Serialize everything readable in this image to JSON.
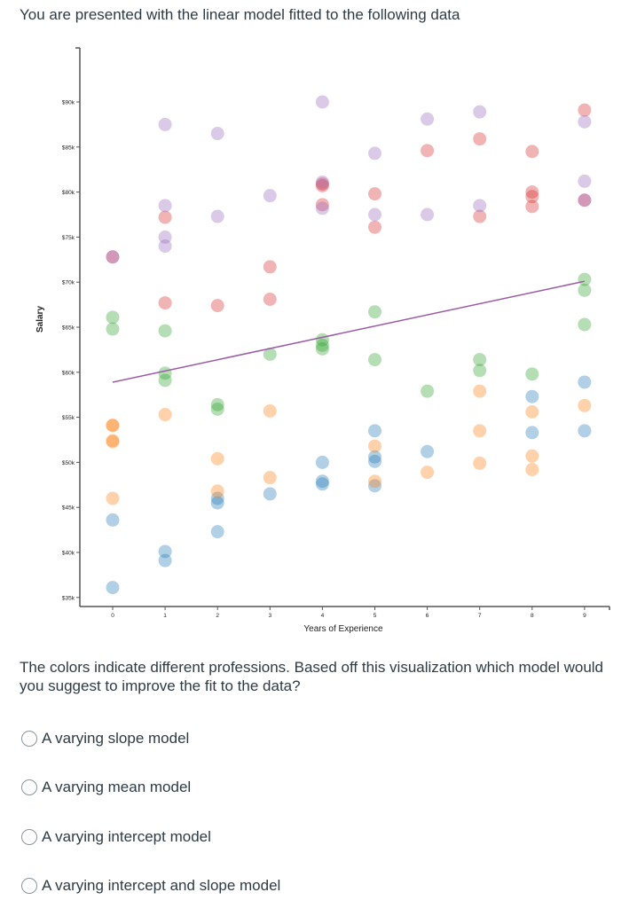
{
  "title": "You are presented with the linear model fitted to the following data",
  "question": "The colors indicate different professions. Based off this visualization which model would you suggest to improve the fit to the data?",
  "options": [
    {
      "label": "A varying slope model",
      "selected": false
    },
    {
      "label": "A varying mean model",
      "selected": false
    },
    {
      "label": "A varying intercept model",
      "selected": false
    },
    {
      "label": "A varying intercept and slope model",
      "selected": false
    }
  ],
  "chart_data": {
    "type": "scatter",
    "xlabel": "Years of Experience",
    "ylabel": "Salary",
    "xlim": [
      -0.6,
      9.5
    ],
    "ylim": [
      34,
      96
    ],
    "x_ticks": [
      "0",
      "1",
      "2",
      "3",
      "4",
      "5",
      "6",
      "7",
      "8",
      "9"
    ],
    "y_ticks": [
      "$35k",
      "$40k",
      "$45k",
      "$50k",
      "$55k",
      "$60k",
      "$65k",
      "$70k",
      "$75k",
      "$80k",
      "$85k",
      "$90k"
    ],
    "y_tick_values": [
      35,
      40,
      45,
      50,
      55,
      60,
      65,
      70,
      75,
      80,
      85,
      90
    ],
    "grid": false,
    "point_opacity": 0.35,
    "fit_line": {
      "x": [
        0,
        9
      ],
      "y": [
        58.9,
        70.1
      ],
      "color": "#9b59a6"
    },
    "series": [
      {
        "color": "#1f77b4",
        "points": [
          [
            0,
            43.6
          ],
          [
            0,
            36.1
          ],
          [
            1,
            40.1
          ],
          [
            1,
            39.1
          ],
          [
            2,
            46.0
          ],
          [
            2,
            45.5
          ],
          [
            2,
            42.3
          ],
          [
            3,
            46.5
          ],
          [
            4,
            50.0
          ],
          [
            4,
            47.9
          ],
          [
            4,
            47.6
          ],
          [
            5,
            53.5
          ],
          [
            5,
            50.6
          ],
          [
            5,
            50.1
          ],
          [
            5,
            47.4
          ],
          [
            6,
            51.2
          ],
          [
            8,
            57.3
          ],
          [
            8,
            53.3
          ],
          [
            9,
            58.9
          ],
          [
            9,
            53.5
          ]
        ]
      },
      {
        "color": "#ff7f0e",
        "points": [
          [
            0,
            54.1
          ],
          [
            0,
            54.1
          ],
          [
            0,
            52.4
          ],
          [
            0,
            52.3
          ],
          [
            0,
            46.0
          ],
          [
            1,
            55.3
          ],
          [
            2,
            50.4
          ],
          [
            2,
            46.8
          ],
          [
            3,
            55.7
          ],
          [
            3,
            48.3
          ],
          [
            5,
            51.8
          ],
          [
            5,
            47.9
          ],
          [
            6,
            48.9
          ],
          [
            7,
            57.9
          ],
          [
            7,
            53.5
          ],
          [
            7,
            49.9
          ],
          [
            8,
            55.6
          ],
          [
            8,
            50.7
          ],
          [
            8,
            49.2
          ],
          [
            9,
            56.3
          ]
        ]
      },
      {
        "color": "#2ca02c",
        "points": [
          [
            0,
            66.1
          ],
          [
            0,
            64.8
          ],
          [
            1,
            64.6
          ],
          [
            1,
            59.9
          ],
          [
            1,
            59.1
          ],
          [
            2,
            56.4
          ],
          [
            2,
            55.9
          ],
          [
            3,
            62.0
          ],
          [
            4,
            63.6
          ],
          [
            4,
            63.0
          ],
          [
            4,
            62.6
          ],
          [
            5,
            66.7
          ],
          [
            5,
            61.4
          ],
          [
            6,
            57.9
          ],
          [
            7,
            61.4
          ],
          [
            7,
            60.2
          ],
          [
            8,
            59.8
          ],
          [
            9,
            70.3
          ],
          [
            9,
            69.1
          ],
          [
            9,
            65.3
          ]
        ]
      },
      {
        "color": "#d62728",
        "points": [
          [
            0,
            72.8
          ],
          [
            1,
            77.2
          ],
          [
            1,
            67.7
          ],
          [
            2,
            67.4
          ],
          [
            3,
            71.7
          ],
          [
            3,
            68.1
          ],
          [
            4,
            80.9
          ],
          [
            4,
            80.7
          ],
          [
            4,
            78.6
          ],
          [
            5,
            79.8
          ],
          [
            5,
            76.1
          ],
          [
            6,
            84.6
          ],
          [
            7,
            85.9
          ],
          [
            7,
            77.3
          ],
          [
            8,
            84.5
          ],
          [
            8,
            80.0
          ],
          [
            8,
            79.5
          ],
          [
            8,
            78.4
          ],
          [
            9,
            89.1
          ],
          [
            9,
            79.1
          ]
        ]
      },
      {
        "color": "#9467bd",
        "points": [
          [
            0,
            72.8
          ],
          [
            1,
            87.5
          ],
          [
            1,
            78.5
          ],
          [
            1,
            75.0
          ],
          [
            1,
            74.0
          ],
          [
            2,
            86.5
          ],
          [
            2,
            77.3
          ],
          [
            3,
            79.6
          ],
          [
            4,
            90.0
          ],
          [
            4,
            81.1
          ],
          [
            4,
            78.2
          ],
          [
            5,
            84.3
          ],
          [
            5,
            77.5
          ],
          [
            6,
            88.1
          ],
          [
            6,
            77.5
          ],
          [
            7,
            88.9
          ],
          [
            7,
            78.5
          ],
          [
            9,
            87.8
          ],
          [
            9,
            81.2
          ],
          [
            9,
            79.1
          ]
        ]
      }
    ]
  }
}
